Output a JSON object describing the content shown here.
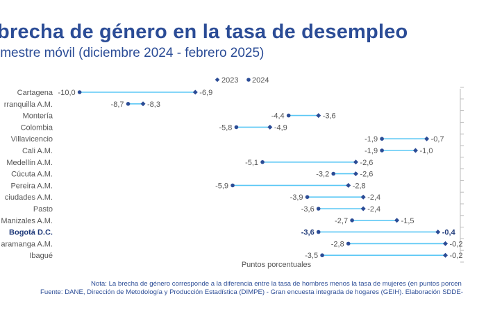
{
  "header": {
    "title": "brecha de género en la tasa de desempleo",
    "subtitle": "imestre móvil (diciembre 2024 - febrero 2025)"
  },
  "footer": {
    "note": "Nota: La brecha de género corresponde a la diferencia entre la tasa de hombres menos la tasa de mujeres (en puntos porcen",
    "source": "Fuente: DANE, Dirección de Metodología y Producción Estadística (DIMPE) - Gran encuesta integrada de hogares (GEIH). Elaboración SDDE-"
  },
  "colors": {
    "title": "#2b4c96",
    "marker_2023": "#2b4c96",
    "marker_2024": "#2b4c96",
    "connector": "#5bc8f5",
    "label": "#555555",
    "highlight": "#1f3a7a",
    "axis": "#bbbbbb"
  },
  "chart_data": {
    "type": "dumbbell",
    "xlabel": "Puntos porcentuales",
    "legend_position": "top",
    "xlim": [
      -10.7,
      0.2
    ],
    "categories": [
      "Cartagena",
      "rranquilla A.M.",
      "Montería",
      "Colombia",
      "Villavicencio",
      "Cali A.M.",
      "Medellín A.M.",
      "Cúcuta A.M.",
      "Pereira A.M.",
      "ciudades A.M.",
      "Pasto",
      "Manizales A.M.",
      "Bogotá D.C.",
      "aramanga A.M.",
      "Ibagué"
    ],
    "highlight_category": "Bogotá D.C.",
    "series": [
      {
        "name": "2023",
        "marker": "diamond",
        "values": [
          -6.9,
          -8.3,
          -3.6,
          -4.9,
          -0.7,
          -1.0,
          -2.6,
          -2.6,
          -2.8,
          -2.4,
          -2.4,
          -1.5,
          -0.4,
          -0.2,
          -0.2
        ],
        "labels": [
          "-6,9",
          "-8,3",
          "-3,6",
          "-4,9",
          "-0,7",
          "-1,0",
          "-2,6",
          "-2,6",
          "-2,8",
          "-2,4",
          "-2,4",
          "-1,5",
          "-0,4",
          "-0,2",
          "-0,2"
        ]
      },
      {
        "name": "2024",
        "marker": "circle",
        "values": [
          -10.0,
          -8.7,
          -4.4,
          -5.8,
          -1.9,
          -1.9,
          -5.1,
          -3.2,
          -5.9,
          -3.9,
          -3.6,
          -2.7,
          -3.6,
          -2.8,
          -3.5
        ],
        "labels": [
          "-10,0",
          "-8,7",
          "-4,4",
          "-5,8",
          "-1,9",
          "-1,9",
          "-5,1",
          "-3,2",
          "-5,9",
          "-3,9",
          "-3,6",
          "-2,7",
          "-3,6",
          "-2,8",
          "-3,5"
        ]
      }
    ]
  }
}
